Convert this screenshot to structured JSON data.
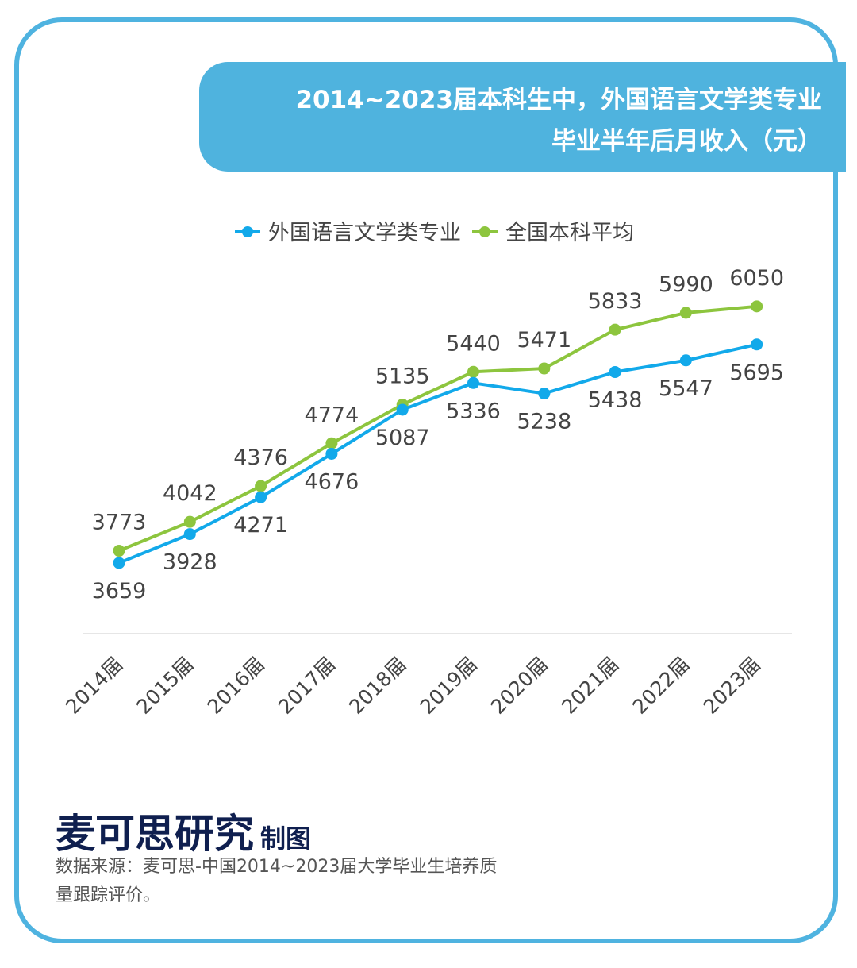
{
  "title": {
    "line1": "2014~2023届本科生中，外国语言文学类专业",
    "line2": "毕业半年后月收入（元）"
  },
  "chart_data": {
    "type": "line",
    "title": "2014~2023届本科生中，外国语言文学类专业毕业半年后月收入（元）",
    "categories": [
      "2014届",
      "2015届",
      "2016届",
      "2017届",
      "2018届",
      "2019届",
      "2020届",
      "2021届",
      "2022届",
      "2023届"
    ],
    "series": [
      {
        "name": "外国语言文学类专业",
        "color": "#12a9ea",
        "values": [
          3659,
          3928,
          4271,
          4676,
          5087,
          5336,
          5238,
          5438,
          5547,
          5695
        ]
      },
      {
        "name": "全国本科平均",
        "color": "#8dc53e",
        "values": [
          3773,
          4042,
          4376,
          4774,
          5135,
          5440,
          5471,
          5833,
          5990,
          6050
        ]
      }
    ],
    "ylim": [
      3000,
      6500
    ],
    "legend": "top-center",
    "grid": false,
    "xlabel": "",
    "ylabel": ""
  },
  "footer": {
    "brand": "麦可思研究",
    "brand_sub": "制图",
    "source": "数据来源：麦可思-中国2014~2023届大学毕业生培养质量跟踪评价。"
  }
}
